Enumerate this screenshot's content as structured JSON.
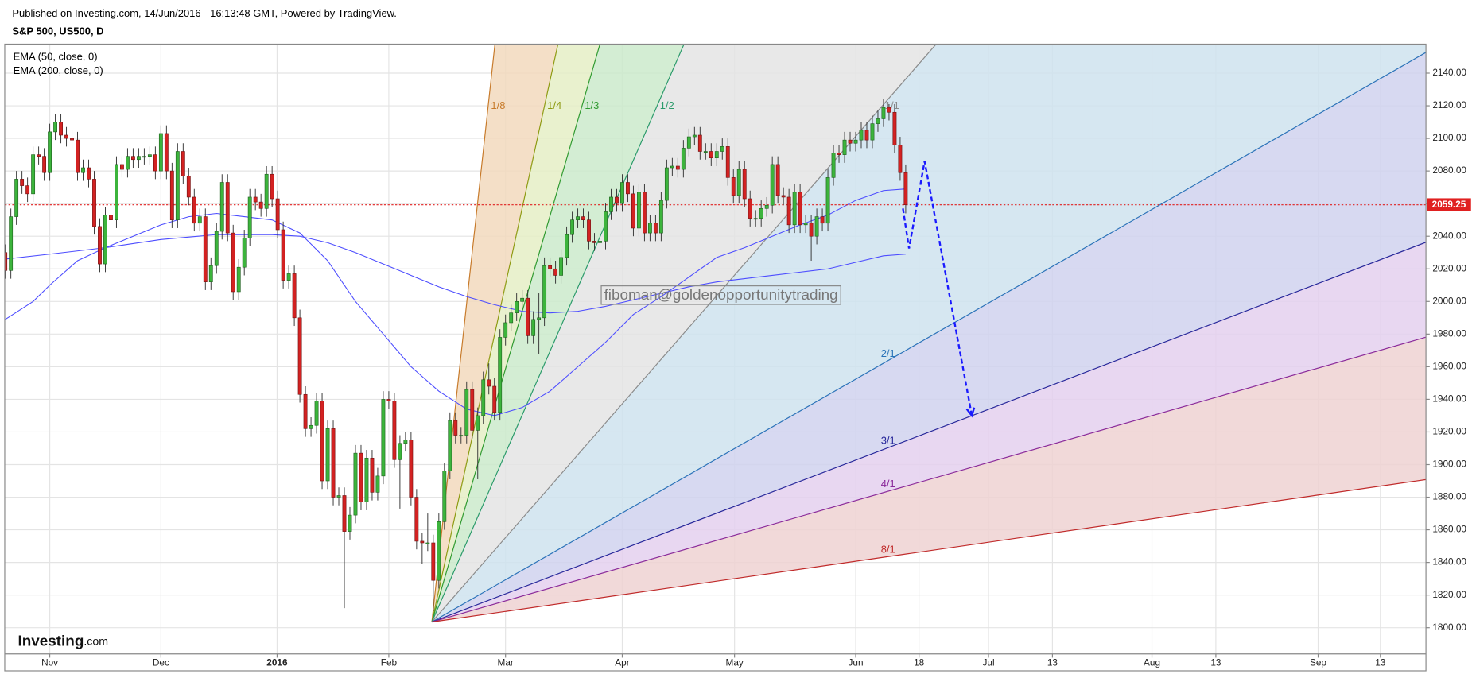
{
  "chart_data": {
    "type": "candlestick",
    "subtitle": "Published on Investing.com, 14/Jun/2016 - 16:13:48 GMT, Powered by TradingView.",
    "title": "S&P 500, US500, D",
    "up_color": "#3cb43c",
    "down_color": "#d32222",
    "x": [
      -8,
      -7,
      -6,
      -5,
      -4,
      -3,
      -2,
      -1,
      0,
      1,
      2,
      3,
      4,
      5,
      6,
      7,
      8,
      9,
      10,
      11,
      12,
      13,
      14,
      15,
      16,
      17,
      18,
      19,
      20,
      21,
      22,
      23,
      24,
      25,
      26,
      27,
      28,
      29,
      30,
      31,
      32,
      33,
      34,
      35,
      36,
      37,
      38,
      39,
      40,
      41,
      42,
      43,
      44,
      45,
      46,
      47,
      48,
      49,
      50,
      51,
      52,
      53,
      54,
      55,
      56,
      57,
      58,
      59,
      60,
      61,
      62,
      63,
      64,
      65,
      66,
      67,
      68,
      69,
      70,
      71,
      72,
      73,
      74,
      75,
      76,
      77,
      78,
      79,
      80,
      81,
      82,
      83,
      84,
      85,
      86,
      87,
      88,
      89,
      90,
      91,
      92,
      93,
      94,
      95,
      96,
      97,
      98,
      99,
      100,
      101,
      102,
      103,
      104,
      105,
      106,
      107,
      108,
      109,
      110,
      111,
      112,
      113,
      114,
      115,
      116,
      117,
      118,
      119,
      120,
      121,
      122,
      123,
      124,
      125,
      126,
      127,
      128,
      129,
      130,
      131,
      132,
      133,
      134,
      135,
      136,
      137,
      138,
      139,
      140,
      141,
      142,
      143,
      144,
      145,
      146,
      147,
      148,
      149,
      150,
      151,
      152,
      153,
      154
    ],
    "open": [
      2030,
      2019,
      2052,
      2075,
      2071,
      2066,
      2090,
      2089,
      2079,
      2104,
      2110,
      2102,
      2100,
      2099,
      2079,
      2082,
      2075,
      2046,
      2023,
      2053,
      2050,
      2084,
      2081,
      2089,
      2087,
      2089,
      2089,
      2090,
      2080,
      2103,
      2080,
      2050,
      2092,
      2077,
      2064,
      2048,
      2052,
      2012,
      2022,
      2043,
      2073,
      2042,
      2006,
      2021,
      2039,
      2064,
      2061,
      2057,
      2078,
      2063,
      2044,
      2013,
      2017,
      1990,
      1943,
      1922,
      1924,
      1939,
      1890,
      1922,
      1880,
      1881,
      1859,
      1869,
      1907,
      1877,
      1904,
      1883,
      1893,
      1940,
      1939,
      1903,
      1913,
      1915,
      1880,
      1853,
      1852,
      1852,
      1829,
      1865,
      1896,
      1927,
      1918,
      1918,
      1946,
      1921,
      1930,
      1952,
      1948,
      1932,
      1978,
      1987,
      1993,
      2000,
      2002,
      1979,
      1989,
      1990,
      2022,
      2020,
      2016,
      2027,
      2041,
      2050,
      2052,
      2050,
      2037,
      2036,
      2037,
      2055,
      2064,
      2060,
      2073,
      2066,
      2045,
      2067,
      2042,
      2048,
      2042,
      2062,
      2082,
      2083,
      2081,
      2094,
      2101,
      2102,
      2092,
      2092,
      2088,
      2092,
      2095,
      2076,
      2065,
      2081,
      2063,
      2051,
      2051,
      2057,
      2059,
      2084,
      2065,
      2064,
      2047,
      2067,
      2047,
      2048,
      2040,
      2052,
      2048,
      2076,
      2091,
      2090,
      2099,
      2097,
      2099,
      2105,
      2099,
      2109,
      2112,
      2119,
      2116,
      2096,
      2079
    ],
    "high": [
      2035,
      2057,
      2080,
      2080,
      2076,
      2095,
      2095,
      2094,
      2109,
      2115,
      2115,
      2107,
      2105,
      2104,
      2087,
      2087,
      2080,
      2051,
      2058,
      2058,
      2089,
      2089,
      2094,
      2094,
      2094,
      2094,
      2095,
      2095,
      2108,
      2108,
      2085,
      2097,
      2097,
      2082,
      2069,
      2057,
      2057,
      2027,
      2048,
      2078,
      2078,
      2047,
      2026,
      2044,
      2069,
      2069,
      2066,
      2083,
      2083,
      2068,
      2049,
      2022,
      2022,
      1995,
      1948,
      1929,
      1944,
      1944,
      1927,
      1927,
      1886,
      1886,
      1874,
      1912,
      1912,
      1909,
      1909,
      1898,
      1945,
      1945,
      1944,
      1918,
      1920,
      1920,
      1885,
      1858,
      1870,
      1857,
      1870,
      1901,
      1932,
      1932,
      1923,
      1951,
      1951,
      1935,
      1957,
      1962,
      1953,
      1983,
      1992,
      1998,
      2005,
      2007,
      2007,
      1994,
      2005,
      2027,
      2027,
      2025,
      2032,
      2046,
      2055,
      2057,
      2057,
      2055,
      2042,
      2042,
      2060,
      2069,
      2069,
      2078,
      2078,
      2071,
      2072,
      2072,
      2053,
      2053,
      2067,
      2087,
      2088,
      2088,
      2099,
      2106,
      2107,
      2107,
      2097,
      2097,
      2097,
      2100,
      2100,
      2081,
      2086,
      2086,
      2068,
      2056,
      2062,
      2064,
      2089,
      2089,
      2070,
      2069,
      2072,
      2072,
      2053,
      2053,
      2057,
      2057,
      2081,
      2096,
      2096,
      2104,
      2104,
      2104,
      2110,
      2110,
      2114,
      2117,
      2124,
      2121,
      2121,
      2101,
      2084
    ],
    "low": [
      2014,
      2014,
      2047,
      2066,
      2061,
      2061,
      2084,
      2074,
      2074,
      2099,
      2097,
      2095,
      2094,
      2074,
      2074,
      2070,
      2041,
      2018,
      2018,
      2045,
      2045,
      2076,
      2076,
      2082,
      2082,
      2084,
      2084,
      2075,
      2075,
      2075,
      2045,
      2045,
      2072,
      2059,
      2043,
      2043,
      2007,
      2007,
      2017,
      2038,
      2037,
      2001,
      2001,
      2016,
      2034,
      2056,
      2052,
      2052,
      2058,
      2039,
      2008,
      2008,
      1985,
      1938,
      1917,
      1917,
      1919,
      1885,
      1885,
      1875,
      1875,
      1812,
      1854,
      1864,
      1872,
      1872,
      1878,
      1878,
      1888,
      1934,
      1898,
      1873,
      1908,
      1875,
      1848,
      1839,
      1847,
      1810,
      1824,
      1860,
      1891,
      1913,
      1913,
      1913,
      1916,
      1891,
      1925,
      1943,
      1927,
      1927,
      1973,
      1982,
      1988,
      1995,
      1974,
      1974,
      1968,
      1985,
      2015,
      2011,
      2011,
      2022,
      2036,
      2045,
      2045,
      2032,
      2031,
      2031,
      2032,
      2050,
      2055,
      2055,
      2061,
      2040,
      2040,
      2037,
      2037,
      2037,
      2037,
      2057,
      2077,
      2076,
      2076,
      2089,
      2096,
      2087,
      2087,
      2083,
      2083,
      2087,
      2071,
      2060,
      2060,
      2058,
      2046,
      2046,
      2046,
      2052,
      2054,
      2060,
      2059,
      2042,
      2042,
      2042,
      2042,
      2025,
      2035,
      2043,
      2043,
      2071,
      2085,
      2085,
      2092,
      2092,
      2094,
      2094,
      2094,
      2104,
      2107,
      2111,
      2091,
      2074,
      2054
    ],
    "close": [
      2019,
      2052,
      2075,
      2071,
      2066,
      2090,
      2089,
      2079,
      2104,
      2110,
      2102,
      2100,
      2099,
      2079,
      2082,
      2075,
      2046,
      2023,
      2053,
      2050,
      2084,
      2081,
      2089,
      2087,
      2089,
      2089,
      2090,
      2080,
      2103,
      2080,
      2050,
      2092,
      2077,
      2064,
      2048,
      2052,
      2012,
      2022,
      2043,
      2073,
      2042,
      2006,
      2021,
      2039,
      2064,
      2061,
      2057,
      2078,
      2063,
      2044,
      2013,
      2017,
      1990,
      1943,
      1922,
      1924,
      1939,
      1890,
      1922,
      1880,
      1881,
      1859,
      1869,
      1907,
      1877,
      1904,
      1883,
      1893,
      1940,
      1939,
      1903,
      1913,
      1915,
      1880,
      1853,
      1852,
      1852,
      1829,
      1865,
      1896,
      1927,
      1918,
      1918,
      1946,
      1921,
      1930,
      1952,
      1948,
      1932,
      1978,
      1987,
      1993,
      2000,
      2002,
      1979,
      1989,
      1990,
      2022,
      2020,
      2016,
      2027,
      2041,
      2050,
      2052,
      2050,
      2037,
      2036,
      2037,
      2055,
      2064,
      2060,
      2073,
      2066,
      2045,
      2067,
      2042,
      2048,
      2042,
      2062,
      2082,
      2083,
      2081,
      2094,
      2101,
      2102,
      2092,
      2092,
      2088,
      2092,
      2095,
      2076,
      2065,
      2081,
      2063,
      2051,
      2051,
      2057,
      2059,
      2084,
      2065,
      2064,
      2047,
      2067,
      2047,
      2048,
      2040,
      2052,
      2048,
      2076,
      2091,
      2090,
      2099,
      2097,
      2099,
      2105,
      2099,
      2109,
      2112,
      2119,
      2116,
      2096,
      2079,
      2059.25
    ],
    "indicators": [
      {
        "name": "EMA (50, close, 0)",
        "color": "#4d4dff",
        "x": [
          -8,
          -3,
          0,
          5,
          10,
          15,
          20,
          25,
          30,
          35,
          40,
          45,
          50,
          55,
          60,
          65,
          70,
          75,
          80,
          85,
          90,
          95,
          100,
          105,
          110,
          115,
          120,
          125,
          130,
          135,
          140,
          145,
          150,
          154
        ],
        "values": [
          1989,
          2000,
          2010,
          2025,
          2033,
          2040,
          2047,
          2052,
          2054,
          2052,
          2050,
          2042,
          2025,
          2000,
          1980,
          1960,
          1945,
          1934,
          1930,
          1935,
          1945,
          1960,
          1975,
          1992,
          2003,
          2015,
          2027,
          2033,
          2040,
          2047,
          2053,
          2062,
          2068,
          2069
        ]
      },
      {
        "name": "EMA (200, close, 0)",
        "color": "#4d4dff",
        "x": [
          -8,
          0,
          10,
          20,
          30,
          40,
          45,
          50,
          55,
          60,
          65,
          70,
          75,
          80,
          85,
          90,
          95,
          100,
          105,
          110,
          115,
          120,
          125,
          130,
          135,
          140,
          145,
          150,
          154
        ],
        "values": [
          2026,
          2029,
          2033,
          2038,
          2041,
          2041,
          2040,
          2036,
          2030,
          2023,
          2016,
          2009,
          2003,
          1998,
          1994,
          1993,
          1994,
          1997,
          2001,
          2005,
          2009,
          2012,
          2014,
          2016,
          2018,
          2020,
          2024,
          2028,
          2029
        ]
      }
    ],
    "last_price": 2059.25,
    "last_price_color": "#e02020",
    "gann_fan": {
      "origin_x": 68.75,
      "origin_y": 1803.5,
      "unit_slope": 3.905,
      "levels": [
        {
          "label": "1/8",
          "value": 0.125,
          "color": "#c77a2a",
          "fill": "#f2d9bd"
        },
        {
          "label": "1/4",
          "value": 0.25,
          "color": "#8e9a12",
          "fill": "#e5efc6"
        },
        {
          "label": "1/3",
          "value": 0.3333,
          "color": "#2f9a2f",
          "fill": "#cbeacb"
        },
        {
          "label": "1/2",
          "value": 0.5,
          "color": "#2a9a6a",
          "fill": "#e4e4e4"
        },
        {
          "label": "1/1",
          "value": 1,
          "color": "#8a8a8a",
          "fill": "#cfe3ee"
        },
        {
          "label": "2/1",
          "value": 2,
          "color": "#2a72b8",
          "fill": "#d0d2ee"
        },
        {
          "label": "3/1",
          "value": 3,
          "color": "#27279a",
          "fill": "#e4d0ee"
        },
        {
          "label": "4/1",
          "value": 4,
          "color": "#8a2a9a",
          "fill": "#eed2d2"
        },
        {
          "label": "8/1",
          "value": 8,
          "color": "#c02a2a"
        }
      ]
    },
    "projection": {
      "x": [
        153.5,
        154.6,
        157.4,
        165.9
      ],
      "values": [
        2057,
        2032.5,
        2086,
        1930
      ],
      "color": "#1a1aff"
    },
    "annotation": "fiboman@goldenopportunitytrading",
    "logo": "Investing",
    "logo_suffix": ".com",
    "xlim": [
      -8.1,
      247.6
    ],
    "xticks": [
      {
        "value": 0,
        "label": "Nov"
      },
      {
        "value": 20,
        "label": "Dec"
      },
      {
        "value": 40.9,
        "label": "2016"
      },
      {
        "value": 61,
        "label": "Feb"
      },
      {
        "value": 82,
        "label": "Mar"
      },
      {
        "value": 103,
        "label": "Apr"
      },
      {
        "value": 123.2,
        "label": "May"
      },
      {
        "value": 145,
        "label": "Jun"
      },
      {
        "value": 156.4,
        "label": "18"
      },
      {
        "value": 168.9,
        "label": "Jul"
      },
      {
        "value": 180.4,
        "label": "13"
      },
      {
        "value": 198.3,
        "label": "Aug"
      },
      {
        "value": 209.8,
        "label": "13"
      },
      {
        "value": 228.2,
        "label": "Sep"
      },
      {
        "value": 239.4,
        "label": "13"
      }
    ],
    "ylim": [
      1783.9,
      2157.8
    ],
    "yticks": [
      {
        "value": 1800,
        "label": "1800.00"
      },
      {
        "value": 1820,
        "label": "1820.00"
      },
      {
        "value": 1840,
        "label": "1840.00"
      },
      {
        "value": 1860,
        "label": "1860.00"
      },
      {
        "value": 1880,
        "label": "1880.00"
      },
      {
        "value": 1900,
        "label": "1900.00"
      },
      {
        "value": 1920,
        "label": "1920.00"
      },
      {
        "value": 1940,
        "label": "1940.00"
      },
      {
        "value": 1960,
        "label": "1960.00"
      },
      {
        "value": 1980,
        "label": "1980.00"
      },
      {
        "value": 2000,
        "label": "2000.00"
      },
      {
        "value": 2020,
        "label": "2020.00"
      },
      {
        "value": 2040,
        "label": "2040.00"
      },
      {
        "value": 2060,
        "label": "2060.00"
      },
      {
        "value": 2080,
        "label": "2080.00"
      },
      {
        "value": 2100,
        "label": "2100.00"
      },
      {
        "value": 2120,
        "label": "2120.00"
      },
      {
        "value": 2140,
        "label": "2140.00"
      }
    ],
    "grid": true
  }
}
